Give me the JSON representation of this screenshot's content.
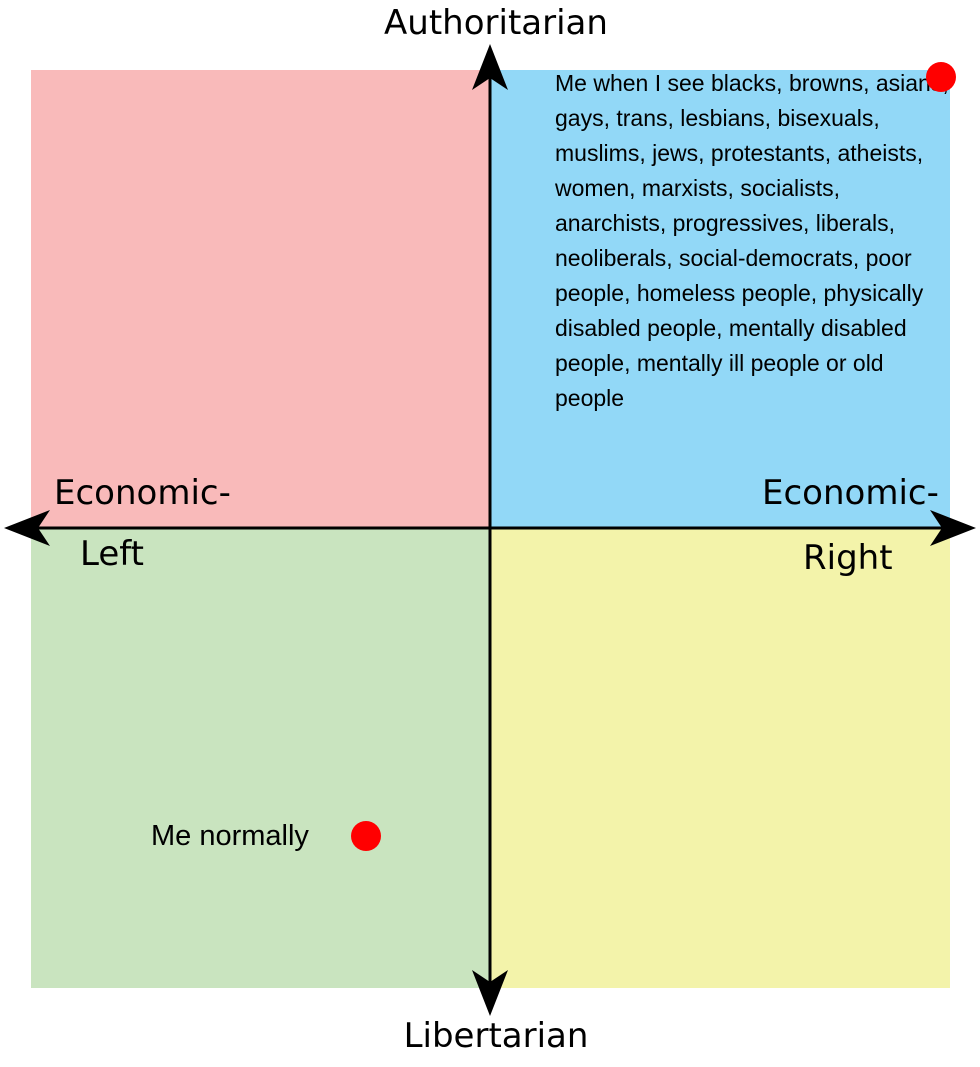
{
  "axes": {
    "top": "Authoritarian",
    "bottom": "Libertarian",
    "left_line1": "Economic-",
    "left_line2": "Left",
    "right_line1": "Economic-",
    "right_line2": "Right",
    "range": [
      -10,
      10
    ]
  },
  "quadrant_colors": {
    "authoritarian_left": "#f9baba",
    "authoritarian_right": "#92d8f7",
    "libertarian_left": "#c9e4bf",
    "libertarian_right": "#f3f3aa"
  },
  "point_color": "#ff0000",
  "points": [
    {
      "label": "Me when I see blacks, browns, asians, gays, trans, lesbians, bisexuals, muslims, jews, protestants, atheists, women, marxists, socialists, anarchists, progressives, liberals, neoliberals, social-democrats, poor people, homeless people, physically disabled people, mentally disabled people, mentally ill people or old people",
      "x": 9.8,
      "y": 9.8
    },
    {
      "label": "Me normally",
      "x": -2.7,
      "y": -6.7
    }
  ]
}
